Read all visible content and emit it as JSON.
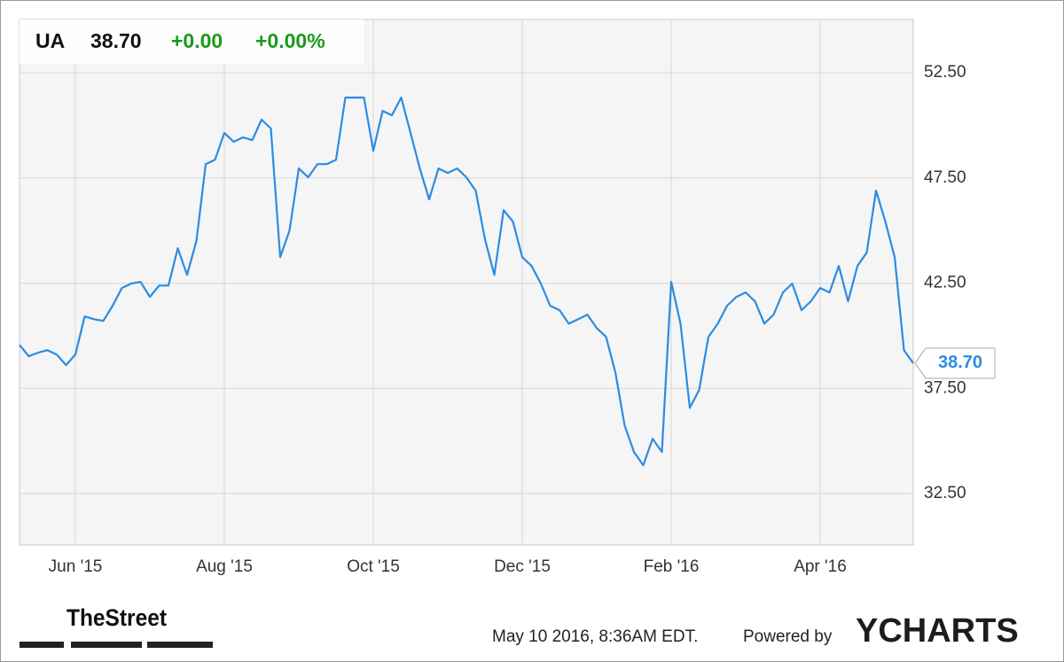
{
  "chart_data": {
    "type": "line",
    "ticker": "UA",
    "price": "38.70",
    "change": "+0.00",
    "change_percent": "+0.00%",
    "timestamp": "May 10 2016, 8:36AM EDT.",
    "powered_by": "Powered by",
    "brand": "YCHARTS",
    "publisher": "TheStreet",
    "categories": [
      null,
      null,
      null,
      null,
      null,
      null,
      "Jun '15",
      null,
      null,
      null,
      null,
      null,
      null,
      null,
      null,
      null,
      null,
      null,
      null,
      null,
      null,
      null,
      "Aug '15",
      null,
      null,
      null,
      null,
      null,
      null,
      null,
      null,
      null,
      null,
      null,
      null,
      null,
      null,
      null,
      "Oct '15",
      null,
      null,
      null,
      null,
      null,
      null,
      null,
      null,
      null,
      null,
      null,
      null,
      null,
      null,
      null,
      "Dec '15",
      null,
      null,
      null,
      null,
      null,
      null,
      null,
      null,
      null,
      null,
      null,
      null,
      null,
      null,
      null,
      "Feb '16",
      null,
      null,
      null,
      null,
      null,
      null,
      null,
      null,
      null,
      null,
      null,
      null,
      null,
      null,
      null,
      "Apr '16",
      null,
      null,
      null,
      null,
      null,
      null,
      null,
      null,
      null,
      null
    ],
    "values": [
      39.57,
      39.03,
      39.2,
      39.32,
      39.11,
      38.61,
      39.11,
      40.92,
      40.79,
      40.71,
      41.43,
      42.27,
      42.48,
      42.56,
      41.85,
      42.39,
      42.39,
      44.16,
      42.9,
      44.5,
      48.16,
      48.37,
      49.64,
      49.22,
      49.43,
      49.3,
      50.27,
      49.85,
      43.74,
      45.0,
      47.95,
      47.53,
      48.16,
      48.16,
      48.37,
      51.32,
      51.32,
      51.32,
      48.79,
      50.69,
      50.48,
      51.32,
      49.64,
      47.95,
      46.48,
      47.95,
      47.74,
      47.95,
      47.53,
      46.9,
      44.58,
      42.9,
      45.97,
      45.43,
      43.74,
      43.32,
      42.48,
      41.43,
      41.22,
      40.58,
      40.79,
      41.01,
      40.37,
      39.95,
      38.27,
      35.74,
      34.48,
      33.85,
      35.11,
      34.48,
      42.56,
      40.58,
      36.58,
      37.43,
      39.95,
      40.58,
      41.43,
      41.85,
      42.06,
      41.64,
      40.58,
      41.01,
      42.06,
      42.48,
      41.22,
      41.64,
      42.27,
      42.06,
      43.32,
      41.64,
      43.32,
      43.95,
      46.9,
      45.43,
      43.74,
      39.32,
      38.7
    ],
    "color": "#2b8ce3",
    "end_label": {
      "value": 38.7,
      "label": "38.70"
    },
    "ylim": [
      30.06,
      55.03
    ],
    "yticks": [
      {
        "value": 32.5,
        "label": "32.50"
      },
      {
        "value": 37.5,
        "label": "37.50"
      },
      {
        "value": 42.5,
        "label": "42.50"
      },
      {
        "value": 47.5,
        "label": "47.50"
      },
      {
        "value": 52.5,
        "label": "52.50"
      }
    ],
    "grid": true
  }
}
